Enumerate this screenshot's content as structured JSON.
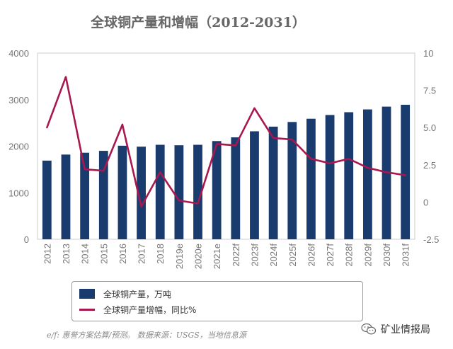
{
  "chart_data": {
    "type": "bar",
    "title": "全球铜产量和增幅（2012-2031）",
    "categories": [
      "2012",
      "2013",
      "2014",
      "2015",
      "2016",
      "2017",
      "2018",
      "2019e",
      "2020e",
      "2021e",
      "2022f",
      "2023f",
      "2024f",
      "2025f",
      "2026f",
      "2027f",
      "2028f",
      "2029f",
      "2030f",
      "2031f"
    ],
    "series": [
      {
        "name": "全球铜产量，万吨",
        "type": "bar",
        "axis": "left",
        "color": "#1a3b6e",
        "values": [
          1690,
          1820,
          1860,
          1900,
          2010,
          1990,
          2030,
          2020,
          2030,
          2110,
          2190,
          2320,
          2420,
          2520,
          2590,
          2670,
          2730,
          2790,
          2850,
          2890
        ]
      },
      {
        "name": "全球铜产量增幅，同比%",
        "type": "line",
        "axis": "right",
        "color": "#a8184f",
        "values": [
          5.0,
          8.4,
          2.2,
          2.1,
          5.2,
          -0.3,
          2.0,
          0.1,
          -0.1,
          3.9,
          3.8,
          6.3,
          4.3,
          4.2,
          2.9,
          2.6,
          2.9,
          2.3,
          2.0,
          1.8
        ]
      }
    ],
    "ylim_left": [
      0,
      4000
    ],
    "yticks_left": [
      "0",
      "1000",
      "2000",
      "3000",
      "4000"
    ],
    "ylim_right": [
      -2.5,
      10
    ],
    "yticks_right": [
      "-2.5",
      "0",
      "2.5",
      "5.0",
      "7.5",
      "10"
    ],
    "grid": false,
    "legend_position": "bottom"
  },
  "legend": {
    "bar_label": "全球铜产量，万吨",
    "line_label": "全球铜产量增幅，同比%"
  },
  "footnote": "e/f: 惠誉方案估算/预测。 数据来源：USGS，当地信息源",
  "watermark": "矿业情报局"
}
